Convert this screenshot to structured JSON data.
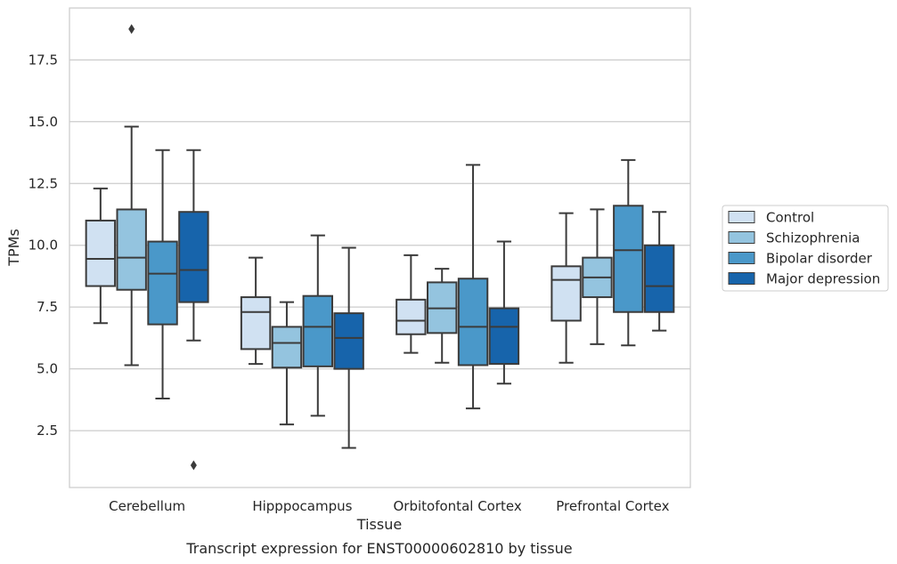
{
  "caption": "Transcript expression for ENST00000602810 by tissue",
  "chart_data": {
    "type": "boxplot",
    "xlabel": "Tissue",
    "ylabel": "TPMs",
    "ylim": [
      0.2,
      19.6
    ],
    "yticks": [
      "2.5",
      "5.0",
      "7.5",
      "10.0",
      "12.5",
      "15.0",
      "17.5"
    ],
    "categories": [
      "Cerebellum",
      "Hipppocampus",
      "Orbitofontal Cortex",
      "Prefrontal Cortex"
    ],
    "grid": "horizontal",
    "legend_position": "right",
    "series": [
      {
        "name": "Control",
        "color": "#d0e1f2",
        "boxes": [
          {
            "whislo": 6.85,
            "q1": 8.35,
            "med": 9.45,
            "q3": 11.0,
            "whishi": 12.3,
            "fliers": []
          },
          {
            "whislo": 5.2,
            "q1": 5.8,
            "med": 7.3,
            "q3": 7.9,
            "whishi": 9.5,
            "fliers": []
          },
          {
            "whislo": 5.65,
            "q1": 6.4,
            "med": 6.95,
            "q3": 7.8,
            "whishi": 9.6,
            "fliers": []
          },
          {
            "whislo": 5.25,
            "q1": 6.95,
            "med": 8.6,
            "q3": 9.15,
            "whishi": 11.3,
            "fliers": []
          }
        ]
      },
      {
        "name": "Schizophrenia",
        "color": "#94c4df",
        "boxes": [
          {
            "whislo": 5.15,
            "q1": 8.2,
            "med": 9.5,
            "q3": 11.45,
            "whishi": 14.8,
            "fliers": [
              18.75
            ]
          },
          {
            "whislo": 2.75,
            "q1": 5.05,
            "med": 6.05,
            "q3": 6.7,
            "whishi": 7.7,
            "fliers": []
          },
          {
            "whislo": 5.25,
            "q1": 6.45,
            "med": 7.45,
            "q3": 8.5,
            "whishi": 9.05,
            "fliers": []
          },
          {
            "whislo": 6.0,
            "q1": 7.9,
            "med": 8.7,
            "q3": 9.5,
            "whishi": 11.45,
            "fliers": []
          }
        ]
      },
      {
        "name": "Bipolar disorder",
        "color": "#4a98c9",
        "boxes": [
          {
            "whislo": 3.8,
            "q1": 6.8,
            "med": 8.85,
            "q3": 10.15,
            "whishi": 13.85,
            "fliers": []
          },
          {
            "whislo": 3.1,
            "q1": 5.1,
            "med": 6.7,
            "q3": 7.95,
            "whishi": 10.4,
            "fliers": []
          },
          {
            "whislo": 3.4,
            "q1": 5.15,
            "med": 6.7,
            "q3": 8.65,
            "whishi": 13.25,
            "fliers": []
          },
          {
            "whislo": 5.95,
            "q1": 7.3,
            "med": 9.8,
            "q3": 11.6,
            "whishi": 13.45,
            "fliers": []
          }
        ]
      },
      {
        "name": "Major depression",
        "color": "#1764ab",
        "boxes": [
          {
            "whislo": 6.15,
            "q1": 7.7,
            "med": 9.0,
            "q3": 11.35,
            "whishi": 13.85,
            "fliers": [
              1.1
            ]
          },
          {
            "whislo": 1.8,
            "q1": 5.0,
            "med": 6.25,
            "q3": 7.25,
            "whishi": 9.9,
            "fliers": []
          },
          {
            "whislo": 4.4,
            "q1": 5.2,
            "med": 6.7,
            "q3": 7.45,
            "whishi": 10.15,
            "fliers": []
          },
          {
            "whislo": 6.55,
            "q1": 7.3,
            "med": 8.35,
            "q3": 10.0,
            "whishi": 11.35,
            "fliers": []
          }
        ]
      }
    ]
  }
}
